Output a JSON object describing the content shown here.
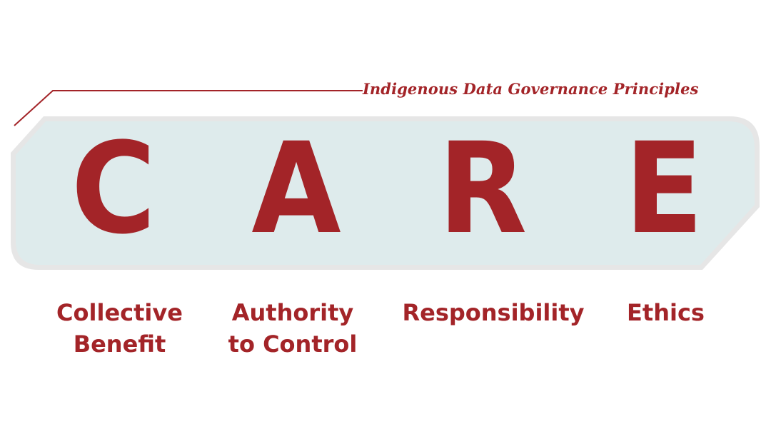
{
  "header": {
    "subtitle": "Indigenous Data Governance Principles"
  },
  "principles": [
    {
      "letter": "C",
      "label_line1": "Collective",
      "label_line2": "Benefit"
    },
    {
      "letter": "A",
      "label_line1": "Authority",
      "label_line2": "to Control"
    },
    {
      "letter": "R",
      "label_line1": "Responsibility",
      "label_line2": ""
    },
    {
      "letter": "E",
      "label_line1": "Ethics",
      "label_line2": ""
    }
  ],
  "colors": {
    "accent": "#a32428",
    "band_fill": "#deebec",
    "band_border": "#e4e4e4"
  }
}
